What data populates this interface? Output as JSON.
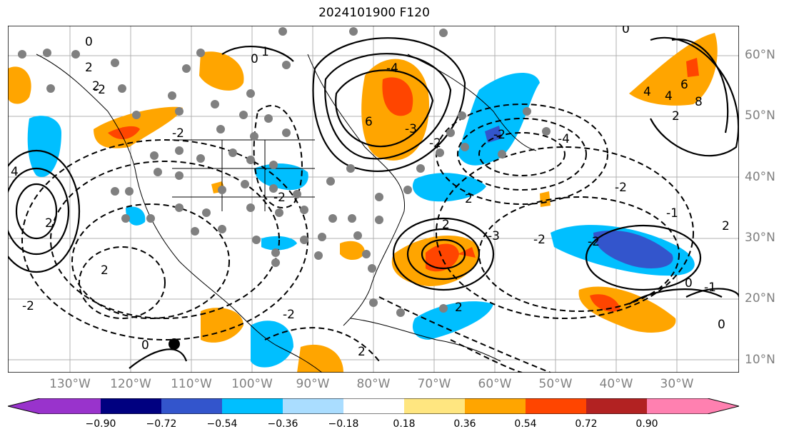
{
  "title": "2024101900 F120",
  "lat_labels": [
    "60°N",
    "50°N",
    "40°N",
    "30°N",
    "20°N",
    "10°N"
  ],
  "lon_labels": [
    "130°W",
    "120°W",
    "110°W",
    "100°W",
    "90°W",
    "80°W",
    "70°W",
    "60°W",
    "50°W",
    "40°W",
    "30°W"
  ],
  "colorbar": {
    "ticks": [
      "−0.90",
      "−0.72",
      "−0.54",
      "−0.36",
      "−0.18",
      "0.18",
      "0.36",
      "0.54",
      "0.72",
      "0.90"
    ],
    "colors": [
      "#9933cc",
      "#000080",
      "#3355cc",
      "#00bfff",
      "#aaddff",
      "#ffffff",
      "#ffe680",
      "#ffa500",
      "#ff4500",
      "#b22222",
      "#ff80b0"
    ]
  },
  "contour_labels": [
    "0",
    "2",
    "2",
    "4",
    "2",
    "1",
    "0",
    "-2",
    "-2",
    "2",
    "-2",
    "-4",
    "-2",
    "-4",
    "-3",
    "-2",
    "2",
    "4",
    "6",
    "8",
    "6",
    "4",
    "2",
    "2",
    "-3",
    "-2",
    "-2",
    "-1",
    "2",
    "-2",
    "0",
    "-1",
    "0",
    "0",
    "2",
    "-2",
    "-2",
    "2",
    "0"
  ]
}
